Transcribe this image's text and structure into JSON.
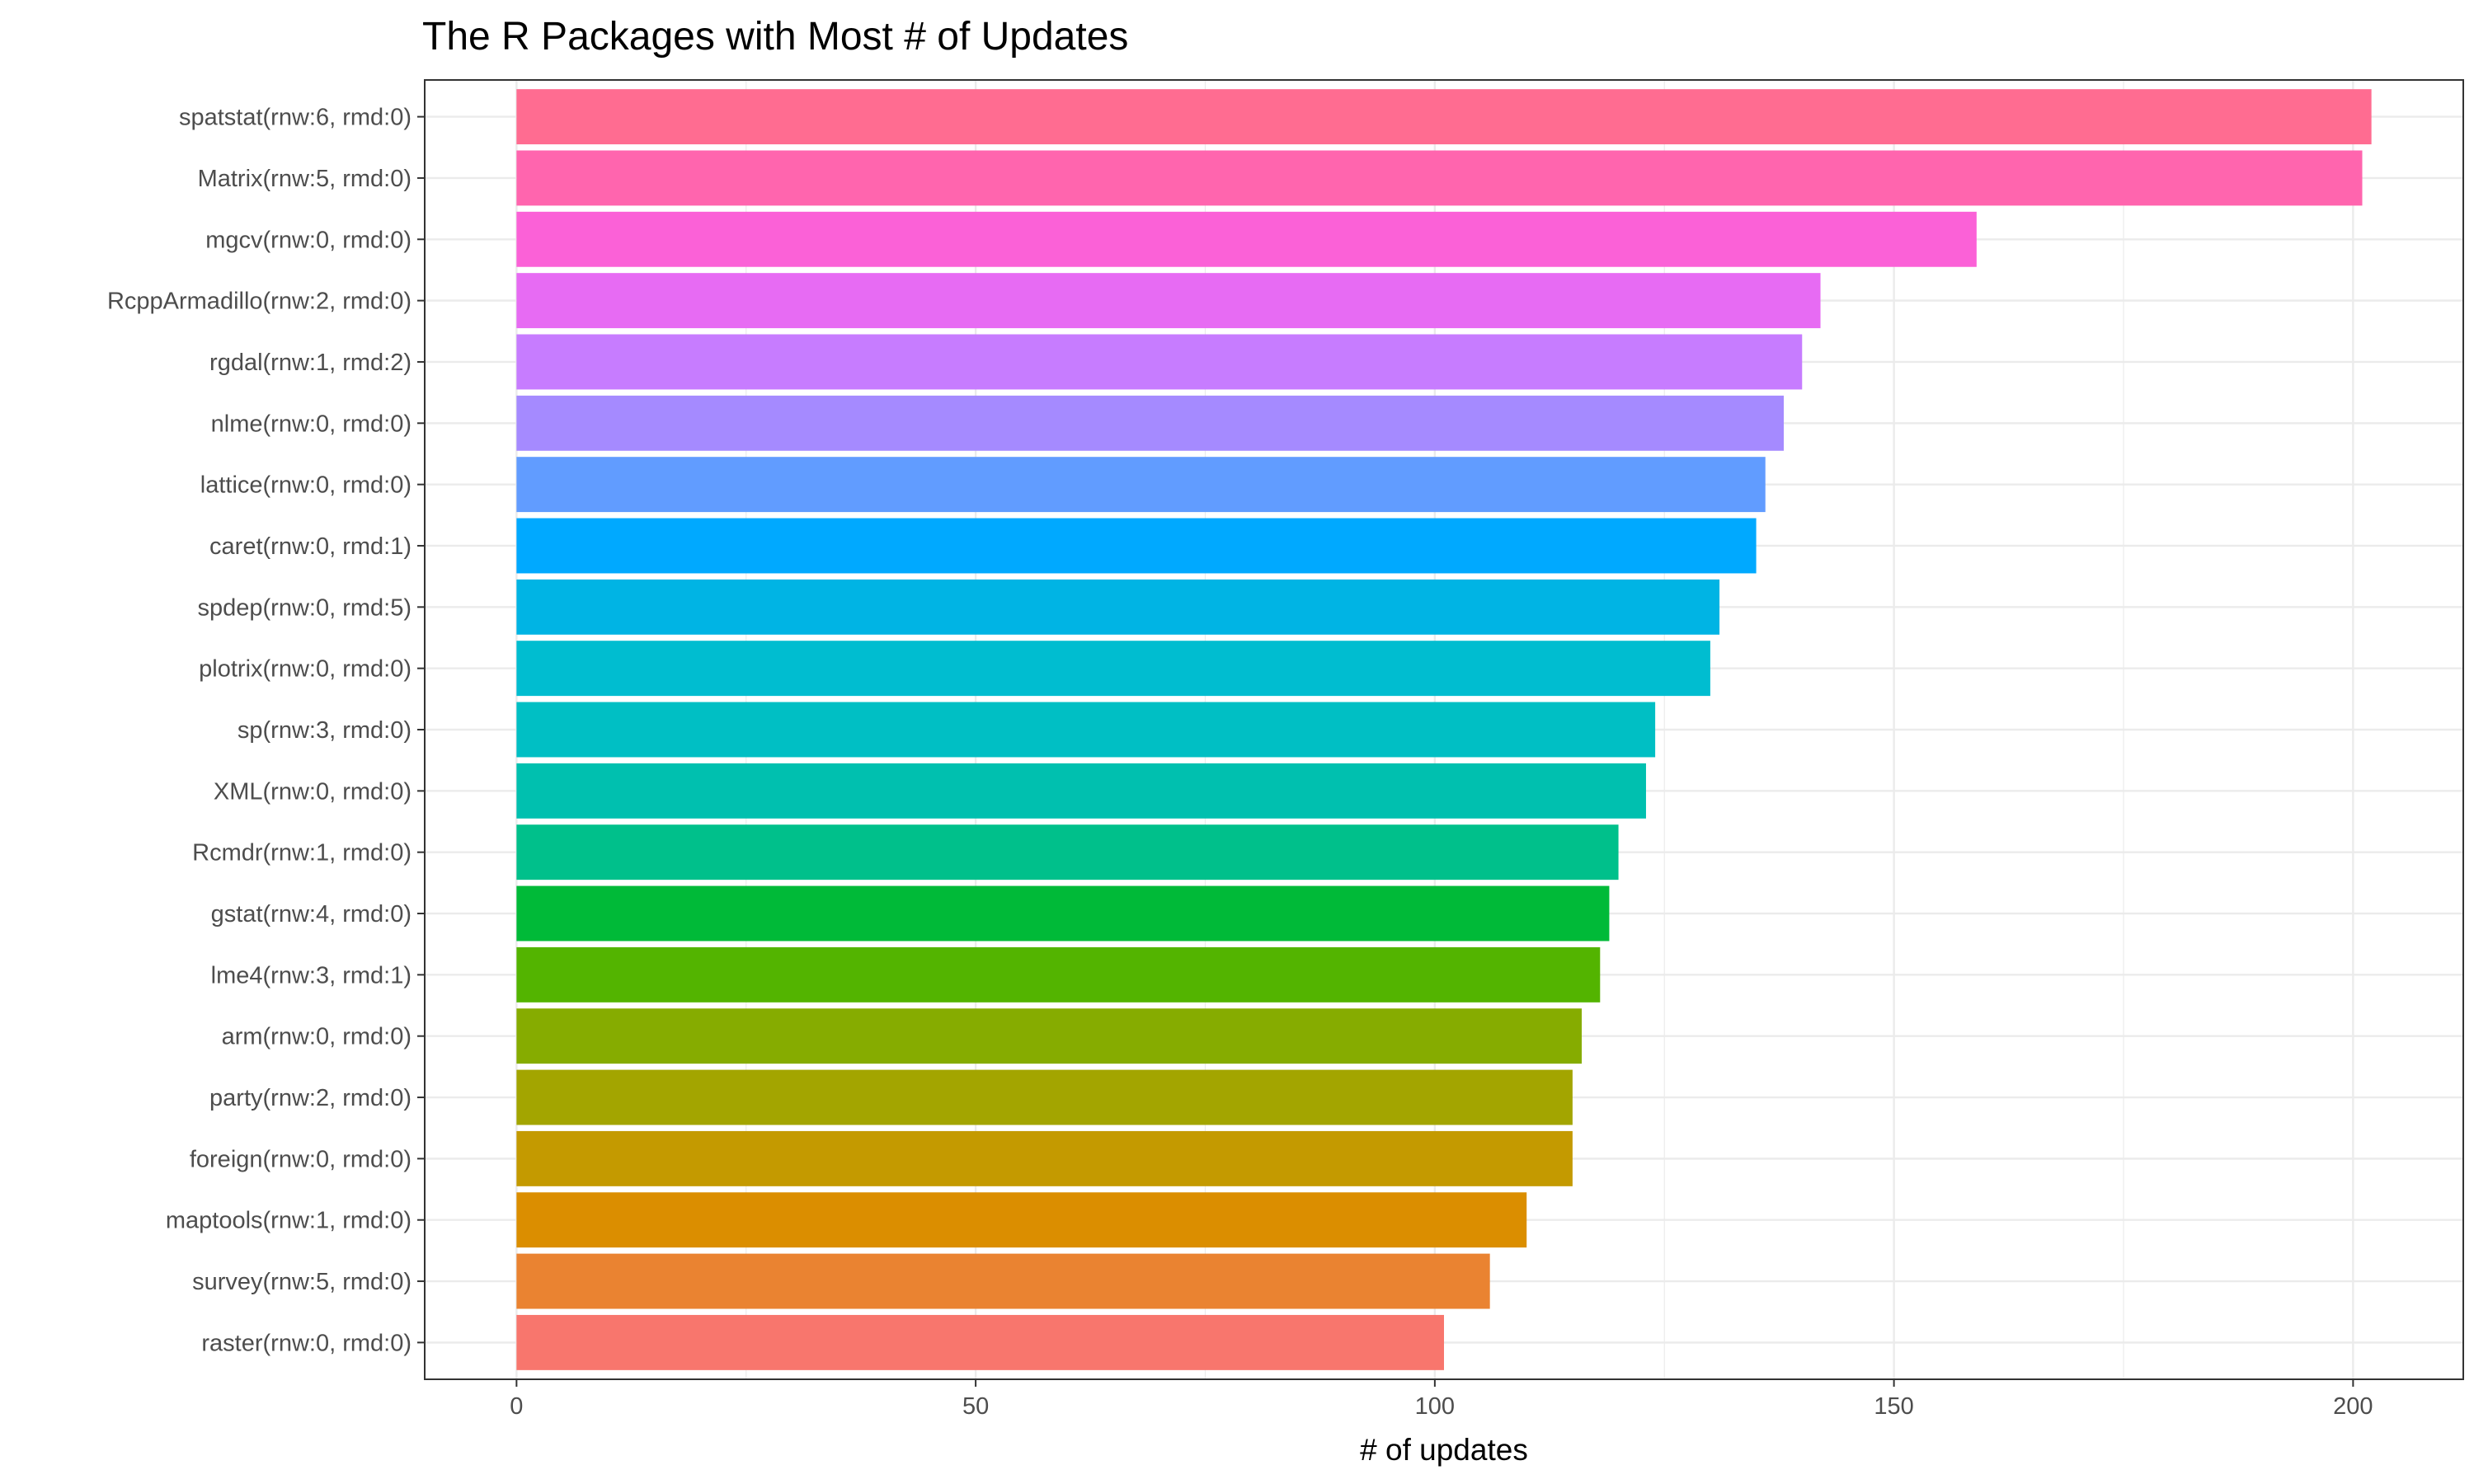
{
  "chart_data": {
    "type": "bar",
    "orientation": "horizontal",
    "title": "The R Packages with Most # of Updates",
    "xlabel": "# of updates",
    "ylabel": "",
    "xlim": [
      -10,
      212
    ],
    "x_ticks": [
      0,
      50,
      100,
      150,
      200
    ],
    "grid": true,
    "legend": "none",
    "categories": [
      "spatstat(rnw:6, rmd:0)",
      "Matrix(rnw:5, rmd:0)",
      "mgcv(rnw:0, rmd:0)",
      "RcppArmadillo(rnw:2, rmd:0)",
      "rgdal(rnw:1, rmd:2)",
      "nlme(rnw:0, rmd:0)",
      "lattice(rnw:0, rmd:0)",
      "caret(rnw:0, rmd:1)",
      "spdep(rnw:0, rmd:5)",
      "plotrix(rnw:0, rmd:0)",
      "sp(rnw:3, rmd:0)",
      "XML(rnw:0, rmd:0)",
      "Rcmdr(rnw:1, rmd:0)",
      "gstat(rnw:4, rmd:0)",
      "lme4(rnw:3, rmd:1)",
      "arm(rnw:0, rmd:0)",
      "party(rnw:2, rmd:0)",
      "foreign(rnw:0, rmd:0)",
      "maptools(rnw:1, rmd:0)",
      "survey(rnw:5, rmd:0)",
      "raster(rnw:0, rmd:0)"
    ],
    "values": [
      202,
      201,
      159,
      142,
      140,
      138,
      136,
      135,
      131,
      130,
      124,
      123,
      120,
      119,
      118,
      116,
      115,
      115,
      110,
      106,
      101
    ],
    "colors": [
      "#FF6C91",
      "#FF65AE",
      "#FB61D7",
      "#E76BF3",
      "#C77CFF",
      "#A58AFF",
      "#619CFF",
      "#00A9FF",
      "#00B4E4",
      "#00BDD0",
      "#00BFC4",
      "#00C0AF",
      "#00C08B",
      "#00BA38",
      "#53B400",
      "#86AC00",
      "#A3A500",
      "#C49A00",
      "#DB8E00",
      "#EA8331",
      "#F8766D"
    ]
  }
}
